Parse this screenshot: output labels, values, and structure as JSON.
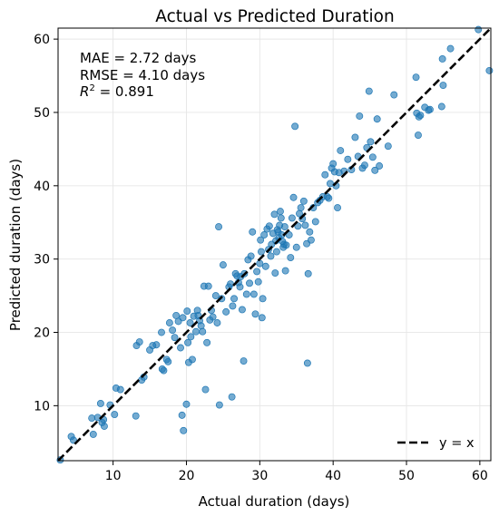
{
  "chart_data": {
    "type": "scatter",
    "title": "Actual vs Predicted Duration",
    "xlabel": "Actual duration (days)",
    "ylabel": "Predicted duration (days)",
    "xlim": [
      2.5,
      61.5
    ],
    "ylim": [
      2.5,
      61.5
    ],
    "xticks": [
      10,
      20,
      30,
      40,
      50,
      60
    ],
    "yticks": [
      10,
      20,
      30,
      40,
      50,
      60
    ],
    "grid": true,
    "legend": {
      "placement": "lower-right",
      "entries": [
        {
          "label": "y = x",
          "style": "dashed-line",
          "color": "#000000"
        }
      ]
    },
    "annotations": {
      "mae": "MAE = 2.72 days",
      "rmse": "RMSE = 4.10 days",
      "r2_prefix": "R",
      "r2_sup": "2",
      "r2_suffix": " = 0.891"
    },
    "reference_line": {
      "name": "y = x",
      "from": [
        2.5,
        2.5
      ],
      "to": [
        61.5,
        61.5
      ],
      "color": "#000000"
    },
    "point_color": "#1f77b4",
    "points": [
      [
        2.8,
        2.6
      ],
      [
        4.3,
        5.8
      ],
      [
        4.6,
        5.3
      ],
      [
        7.1,
        8.3
      ],
      [
        7.3,
        6.1
      ],
      [
        7.9,
        8.4
      ],
      [
        8.3,
        10.3
      ],
      [
        8.5,
        7.7
      ],
      [
        8.7,
        8.1
      ],
      [
        8.8,
        7.2
      ],
      [
        9.6,
        10.1
      ],
      [
        10.2,
        8.8
      ],
      [
        10.4,
        12.4
      ],
      [
        11.0,
        12.2
      ],
      [
        13.1,
        8.6
      ],
      [
        13.2,
        18.2
      ],
      [
        13.6,
        18.7
      ],
      [
        13.9,
        13.5
      ],
      [
        14.2,
        13.9
      ],
      [
        15.0,
        17.6
      ],
      [
        15.4,
        18.2
      ],
      [
        15.9,
        18.3
      ],
      [
        16.6,
        20.0
      ],
      [
        16.7,
        15.0
      ],
      [
        16.9,
        14.8
      ],
      [
        17.3,
        16.3
      ],
      [
        17.5,
        16.0
      ],
      [
        17.7,
        21.3
      ],
      [
        18.1,
        20.3
      ],
      [
        18.4,
        19.3
      ],
      [
        18.6,
        22.3
      ],
      [
        18.9,
        21.5
      ],
      [
        19.2,
        17.9
      ],
      [
        19.5,
        22.0
      ],
      [
        19.6,
        6.6
      ],
      [
        19.4,
        8.7
      ],
      [
        20.0,
        10.2
      ],
      [
        20.1,
        22.9
      ],
      [
        20.2,
        18.6
      ],
      [
        20.3,
        15.9
      ],
      [
        20.5,
        21.3
      ],
      [
        20.6,
        19.4
      ],
      [
        20.8,
        16.3
      ],
      [
        21.0,
        22.2
      ],
      [
        21.3,
        20.1
      ],
      [
        21.5,
        23.0
      ],
      [
        21.6,
        22.3
      ],
      [
        21.8,
        21.6
      ],
      [
        22.0,
        20.9
      ],
      [
        22.2,
        20.1
      ],
      [
        22.4,
        26.3
      ],
      [
        22.6,
        12.2
      ],
      [
        22.8,
        18.6
      ],
      [
        23.0,
        26.3
      ],
      [
        23.2,
        21.7
      ],
      [
        23.4,
        23.0
      ],
      [
        23.6,
        22.1
      ],
      [
        24.0,
        25.0
      ],
      [
        24.2,
        21.3
      ],
      [
        24.4,
        34.4
      ],
      [
        24.5,
        10.1
      ],
      [
        24.8,
        24.6
      ],
      [
        25.0,
        29.2
      ],
      [
        25.4,
        22.8
      ],
      [
        25.8,
        26.2
      ],
      [
        26.0,
        26.6
      ],
      [
        26.2,
        11.2
      ],
      [
        26.3,
        23.6
      ],
      [
        26.5,
        24.6
      ],
      [
        26.7,
        28.0
      ],
      [
        26.9,
        27.7
      ],
      [
        27.1,
        26.8
      ],
      [
        27.3,
        26.2
      ],
      [
        27.4,
        27.6
      ],
      [
        27.6,
        23.1
      ],
      [
        27.8,
        16.1
      ],
      [
        27.9,
        28.0
      ],
      [
        28.2,
        25.2
      ],
      [
        28.4,
        29.9
      ],
      [
        28.6,
        26.7
      ],
      [
        28.8,
        30.4
      ],
      [
        29.0,
        33.7
      ],
      [
        29.2,
        25.2
      ],
      [
        29.4,
        22.5
      ],
      [
        29.6,
        28.3
      ],
      [
        29.8,
        26.9
      ],
      [
        30.0,
        29.4
      ],
      [
        30.1,
        32.6
      ],
      [
        30.2,
        31.0
      ],
      [
        30.3,
        22.0
      ],
      [
        30.4,
        24.6
      ],
      [
        30.6,
        33.3
      ],
      [
        30.8,
        29.0
      ],
      [
        31.0,
        34.1
      ],
      [
        31.2,
        31.3
      ],
      [
        31.3,
        34.5
      ],
      [
        31.5,
        30.4
      ],
      [
        31.6,
        32.0
      ],
      [
        31.8,
        33.5
      ],
      [
        32.0,
        36.1
      ],
      [
        32.1,
        28.1
      ],
      [
        32.2,
        32.5
      ],
      [
        32.3,
        31.0
      ],
      [
        32.4,
        34.0
      ],
      [
        32.5,
        33.7
      ],
      [
        32.6,
        32.9
      ],
      [
        32.7,
        34.6
      ],
      [
        32.8,
        36.5
      ],
      [
        32.9,
        35.6
      ],
      [
        33.0,
        33.3
      ],
      [
        33.1,
        32.4
      ],
      [
        33.2,
        31.6
      ],
      [
        33.3,
        32.0
      ],
      [
        33.4,
        34.4
      ],
      [
        33.5,
        28.4
      ],
      [
        33.6,
        31.9
      ],
      [
        34.0,
        33.3
      ],
      [
        34.2,
        30.2
      ],
      [
        34.4,
        35.6
      ],
      [
        34.6,
        38.4
      ],
      [
        34.8,
        48.1
      ],
      [
        35.0,
        31.6
      ],
      [
        35.2,
        34.5
      ],
      [
        35.4,
        36.2
      ],
      [
        35.6,
        37.0
      ],
      [
        35.8,
        35.5
      ],
      [
        36.0,
        37.9
      ],
      [
        36.2,
        34.6
      ],
      [
        36.4,
        32.1
      ],
      [
        36.6,
        28.0
      ],
      [
        36.5,
        15.8
      ],
      [
        36.8,
        33.7
      ],
      [
        37.0,
        32.6
      ],
      [
        37.3,
        37.0
      ],
      [
        37.6,
        35.1
      ],
      [
        37.9,
        37.7
      ],
      [
        38.2,
        38.0
      ],
      [
        38.6,
        38.5
      ],
      [
        38.9,
        41.5
      ],
      [
        39.2,
        38.5
      ],
      [
        39.4,
        38.3
      ],
      [
        39.6,
        40.3
      ],
      [
        39.8,
        42.4
      ],
      [
        40.0,
        43.0
      ],
      [
        40.2,
        41.9
      ],
      [
        40.4,
        40.0
      ],
      [
        40.6,
        37.0
      ],
      [
        40.8,
        41.8
      ],
      [
        41.0,
        44.8
      ],
      [
        41.5,
        42.0
      ],
      [
        42.0,
        43.6
      ],
      [
        42.5,
        42.2
      ],
      [
        43.0,
        46.6
      ],
      [
        43.4,
        44.0
      ],
      [
        43.6,
        49.5
      ],
      [
        44.0,
        42.4
      ],
      [
        44.3,
        42.8
      ],
      [
        44.6,
        45.2
      ],
      [
        44.9,
        52.9
      ],
      [
        45.1,
        46.0
      ],
      [
        45.4,
        43.9
      ],
      [
        45.7,
        42.1
      ],
      [
        46.0,
        49.1
      ],
      [
        46.3,
        42.7
      ],
      [
        47.5,
        45.4
      ],
      [
        48.3,
        52.4
      ],
      [
        51.3,
        54.8
      ],
      [
        51.4,
        49.9
      ],
      [
        51.6,
        46.9
      ],
      [
        51.7,
        49.4
      ],
      [
        51.9,
        49.6
      ],
      [
        52.5,
        50.7
      ],
      [
        53.0,
        50.3
      ],
      [
        53.2,
        50.4
      ],
      [
        54.8,
        50.8
      ],
      [
        54.9,
        57.3
      ],
      [
        55.0,
        53.7
      ],
      [
        56.0,
        58.7
      ],
      [
        59.8,
        61.3
      ],
      [
        61.3,
        55.7
      ]
    ]
  }
}
